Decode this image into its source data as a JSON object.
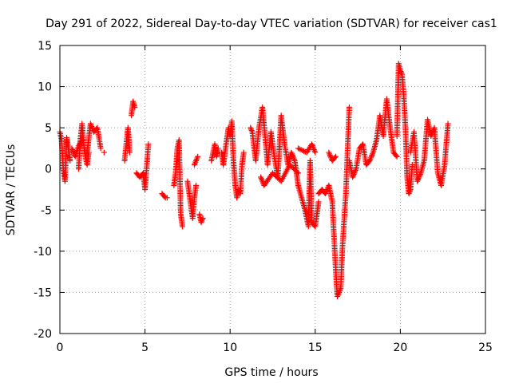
{
  "chart_data": {
    "type": "scatter",
    "title": "Day 291 of 2022, Sidereal Day-to-day VTEC variation (SDTVAR) for receiver cas1",
    "xlabel": "GPS time / hours",
    "ylabel": "SDTVAR / TECUs",
    "xlim": [
      0,
      25
    ],
    "ylim": [
      -20,
      15
    ],
    "xticks": [
      0,
      5,
      10,
      15,
      20,
      25
    ],
    "yticks": [
      -20,
      -15,
      -10,
      -5,
      0,
      5,
      10,
      15
    ],
    "grid": true,
    "marker": "plus",
    "color": "#ff0000",
    "series": [
      {
        "name": "SDTVAR",
        "segments": [
          {
            "x": [
              0.0,
              0.1,
              0.2,
              0.3,
              0.4,
              0.5,
              0.6
            ],
            "y": [
              4.5,
              3.5,
              0,
              -1.5,
              3.8,
              2.5,
              1.0
            ]
          },
          {
            "x": [
              0.7,
              0.9,
              1.1,
              1.3
            ],
            "y": [
              2.5,
              1.5,
              2.8,
              3.5
            ]
          },
          {
            "x": [
              1.1,
              1.2,
              1.3,
              1.4,
              1.5,
              1.6,
              1.7
            ],
            "y": [
              0,
              3.5,
              5.5,
              3.0,
              1.5,
              0.5,
              2.0
            ]
          },
          {
            "x": [
              1.6,
              1.8,
              2.0,
              2.2,
              2.4
            ],
            "y": [
              2.0,
              5.5,
              4.5,
              5.0,
              2.5
            ]
          },
          {
            "x": [
              2.6
            ],
            "y": [
              2.0
            ]
          },
          {
            "x": [
              3.8,
              4.0,
              4.1
            ],
            "y": [
              1.0,
              5.0,
              2.0
            ]
          },
          {
            "x": [
              4.2,
              4.3,
              4.4
            ],
            "y": [
              6.5,
              8.2,
              7.5
            ]
          },
          {
            "x": [
              4.5,
              4.7,
              4.9,
              5.0,
              5.2
            ],
            "y": [
              -0.5,
              -1.0,
              -0.5,
              -2.5,
              3.0
            ]
          },
          {
            "x": [
              6.0,
              6.2,
              6.3
            ],
            "y": [
              -3.0,
              -3.5,
              -3.5
            ]
          },
          {
            "x": [
              6.7,
              6.8,
              6.9,
              7.0,
              7.1,
              7.2
            ],
            "y": [
              -2.0,
              -0.5,
              2.5,
              3.5,
              -5.5,
              -7.0
            ]
          },
          {
            "x": [
              7.5,
              7.6,
              7.8,
              7.9,
              8.0
            ],
            "y": [
              -1.5,
              -3.0,
              -6.0,
              -3.5,
              -2.0
            ]
          },
          {
            "x": [
              7.9,
              8.1
            ],
            "y": [
              0.5,
              1.5
            ]
          },
          {
            "x": [
              8.2,
              8.3,
              8.4
            ],
            "y": [
              -5.5,
              -6.5,
              -6.0
            ]
          },
          {
            "x": [
              8.9,
              9.0,
              9.1,
              9.2,
              9.3
            ],
            "y": [
              1.0,
              2.0,
              3.0,
              1.5,
              2.5
            ]
          },
          {
            "x": [
              9.5,
              9.6,
              9.8,
              9.9,
              10.0,
              10.1,
              10.2,
              10.3,
              10.4,
              10.5,
              10.6,
              10.7,
              10.8
            ],
            "y": [
              2.0,
              0.5,
              3.5,
              5.0,
              4.0,
              5.8,
              1.0,
              -2.0,
              -3.5,
              -2.5,
              -3.0,
              0.5,
              2.0
            ]
          },
          {
            "x": [
              11.2,
              11.3,
              11.5,
              11.7,
              11.9,
              12.1,
              12.2,
              12.4,
              12.6,
              12.8,
              13.0,
              13.2
            ],
            "y": [
              5.0,
              4.5,
              1.0,
              5.0,
              7.5,
              3.0,
              0.5,
              4.5,
              1.5,
              -1.0,
              6.5,
              3.0
            ]
          },
          {
            "x": [
              11.8,
              12.0,
              12.5,
              13.0,
              13.5,
              14.0
            ],
            "y": [
              -1.0,
              -2.0,
              -0.5,
              -1.5,
              0.5,
              -0.5
            ]
          },
          {
            "x": [
              13.2,
              13.4,
              13.6,
              13.8,
              14.0,
              14.2,
              14.4,
              14.6,
              14.7,
              14.8,
              15.0,
              15.2
            ],
            "y": [
              3.0,
              0.5,
              2.0,
              1.0,
              -2.0,
              -3.5,
              -5.0,
              -7.0,
              1.0,
              -6.5,
              -7.0,
              -4.0
            ]
          },
          {
            "x": [
              14.0,
              14.5,
              14.8,
              15.0
            ],
            "y": [
              2.5,
              2.0,
              3.0,
              2.0
            ]
          },
          {
            "x": [
              15.2,
              15.4,
              15.6,
              15.8,
              16.0,
              16.2,
              16.3,
              16.5,
              16.6,
              16.8,
              17.0
            ],
            "y": [
              -3.0,
              -2.5,
              -3.0,
              -2.0,
              -4.0,
              -12.0,
              -15.5,
              -14.5,
              -9.5,
              -3.0,
              7.5
            ]
          },
          {
            "x": [
              15.8,
              16.0,
              16.2
            ],
            "y": [
              2.0,
              1.0,
              1.5
            ]
          },
          {
            "x": [
              17.0,
              17.2,
              17.4,
              17.6,
              17.8,
              18.0,
              18.2,
              18.4,
              18.6,
              18.8,
              19.0,
              19.2,
              19.4,
              19.6,
              19.8
            ],
            "y": [
              1.0,
              -1.0,
              0.0,
              2.5,
              3.0,
              0.5,
              1.0,
              2.0,
              3.5,
              6.5,
              4.0,
              8.5,
              5.0,
              2.0,
              1.5
            ]
          },
          {
            "x": [
              19.8,
              19.9,
              20.0,
              20.1,
              20.2,
              20.3,
              20.4,
              20.5,
              20.6,
              20.7
            ],
            "y": [
              4.0,
              12.8,
              12.0,
              11.5,
              9.0,
              5.0,
              -1.0,
              -3.0,
              -2.5,
              0.5
            ]
          },
          {
            "x": [
              20.6,
              20.8,
              21.0,
              21.2,
              21.4,
              21.6,
              21.8,
              22.0,
              22.2,
              22.4,
              22.6,
              22.8
            ],
            "y": [
              2.0,
              4.5,
              -1.5,
              -0.5,
              1.0,
              6.0,
              4.0,
              5.0,
              -0.5,
              -2.0,
              0.5,
              5.5
            ]
          }
        ]
      }
    ]
  }
}
